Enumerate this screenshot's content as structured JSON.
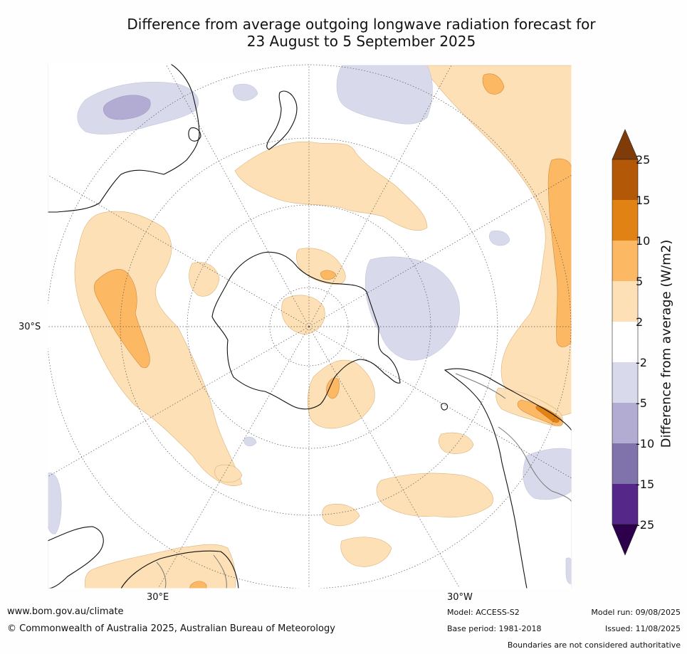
{
  "title_line1": "Difference from average outgoing longwave radiation forecast for",
  "title_line2": "23 August to 5 September 2025",
  "map_labels": {
    "lat_30s": "30°S",
    "lon_30e": "30°E",
    "lon_30w": "30°W"
  },
  "colorbar": {
    "title": "Difference from average (W/m2)",
    "ticks": [
      "25",
      "15",
      "10",
      "5",
      "2",
      "-2",
      "-5",
      "-10",
      "-15",
      "-25"
    ],
    "colors": [
      "#7f3b08",
      "#b35806",
      "#e08214",
      "#fdb863",
      "#fee0b6",
      "#ffffff",
      "#d8daeb",
      "#b2abd2",
      "#8073ac",
      "#542788",
      "#2d004b"
    ]
  },
  "footer": {
    "website": "www.bom.gov.au/climate",
    "copyright": "© Commonwealth of Australia 2025, Australian Bureau of Meteorology",
    "model": "Model: ACCESS-S2",
    "base_period": "Base period: 1981-2018",
    "model_run": "Model run: 09/08/2025",
    "issued": "Issued: 11/08/2025",
    "disclaimer": "Boundaries are not considered authoritative"
  }
}
